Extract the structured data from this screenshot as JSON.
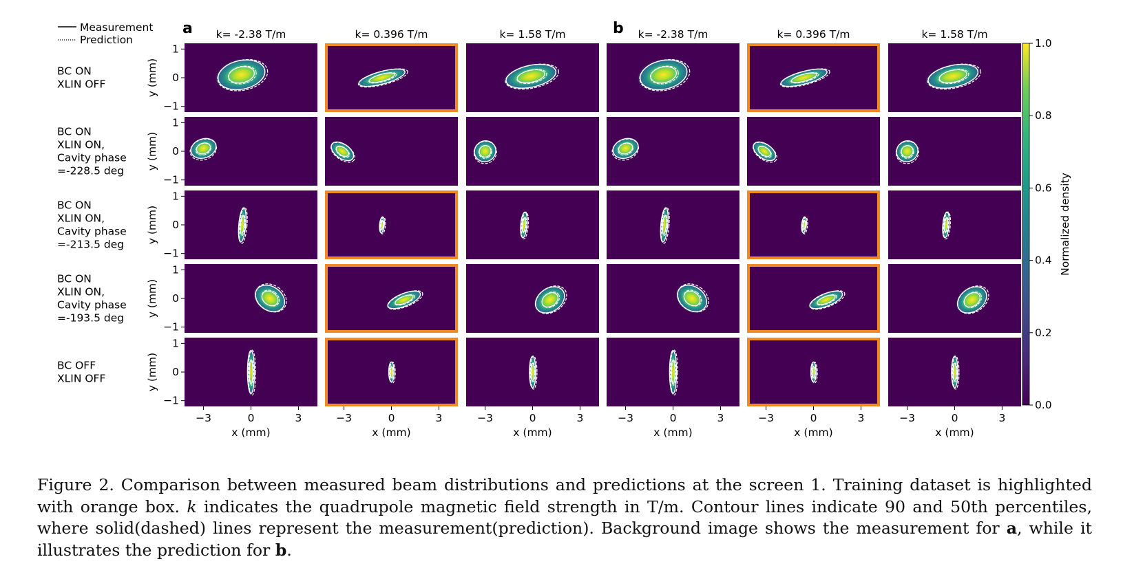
{
  "figure": {
    "legend": {
      "measurement_label": "Measurement",
      "prediction_label": "Prediction"
    },
    "groups": [
      {
        "label": "a",
        "background": "Measurement"
      },
      {
        "label": "b",
        "background": "Prediction"
      }
    ],
    "columns": [
      "k= -2.38 T/m",
      "k= 0.396 T/m",
      "k= 1.58 T/m"
    ],
    "rows": [
      {
        "label": [
          "BC ON",
          "XLIN OFF"
        ]
      },
      {
        "label": [
          "BC ON",
          "XLIN ON,",
          "Cavity phase",
          "=-228.5 deg"
        ]
      },
      {
        "label": [
          "BC ON",
          "XLIN ON,",
          "Cavity phase",
          "=-213.5 deg"
        ]
      },
      {
        "label": [
          "BC ON",
          "XLIN ON,",
          "Cavity phase",
          "=-193.5 deg"
        ]
      },
      {
        "label": [
          "BC OFF",
          "XLIN OFF"
        ]
      }
    ],
    "y_axis_label": "y (mm)",
    "x_axis_label": "x (mm)",
    "x_ticks": [
      "−3",
      "0",
      "3"
    ],
    "y_ticks": [
      "1",
      "0",
      "−1"
    ],
    "colorbar": {
      "label": "Normalized density",
      "ticks": [
        "1.0",
        "0.8",
        "0.6",
        "0.4",
        "0.2",
        "0.0"
      ]
    },
    "training_highlight": {
      "rows": [
        0,
        2,
        3,
        4
      ],
      "column": 1,
      "color": "#f08a24"
    },
    "colors": {
      "panel_bg": "#440154",
      "contour": "#ffffff"
    }
  },
  "caption": {
    "fig_label": "Figure 2.",
    "text_1": " Comparison between measured beam distributions and predictions at the screen 1. Training dataset is highlighted with orange box. ",
    "k_symbol": "k",
    "text_2": " indicates the quadrupole magnetic field strength in T/m. Contour lines indicate 90 and 50th percentiles, where solid(dashed) lines represent the measurement(prediction). Background image shows the measurement for ",
    "a_label": "a",
    "text_3": ", while it illustrates the prediction for ",
    "b_label": "b",
    "text_4": "."
  }
}
